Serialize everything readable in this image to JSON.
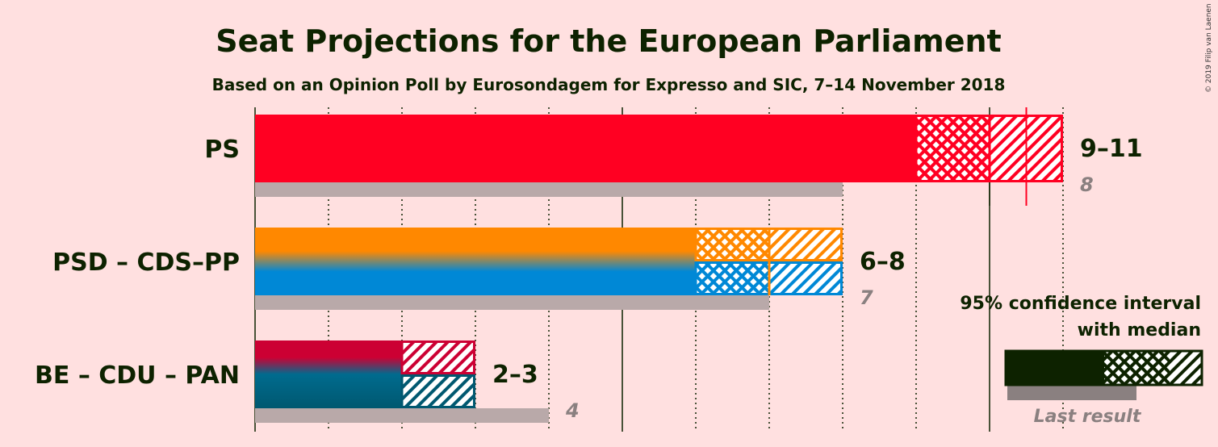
{
  "copyright": "© 2019 Filip van Laenen",
  "chart_data": {
    "type": "bar",
    "title": "Seat Projections for the European Parliament",
    "subtitle": "Based on an Opinion Poll by Eurosondagem for Expresso and SIC, 7–14 November 2018",
    "xlim": [
      0,
      11
    ],
    "orientation": "horizontal",
    "grid": true,
    "parties": [
      {
        "name": "PS",
        "range_label": "9–11",
        "last_label": "8",
        "ci_low": 9,
        "median": 10,
        "ci_high": 11,
        "last_result": 8,
        "majority_marker": 10.5,
        "colors": [
          "#ff0022"
        ]
      },
      {
        "name": "PSD – CDS–PP",
        "range_label": "6–8",
        "last_label": "7",
        "ci_low": 6,
        "median": 7,
        "ci_high": 8,
        "last_result": 7,
        "colors": [
          "#ff8800",
          "#0088d6"
        ]
      },
      {
        "name": "BE – CDU – PAN",
        "range_label": "2–3",
        "last_label": "4",
        "ci_low": 2,
        "median": 2,
        "ci_high": 3,
        "last_result": 4,
        "colors": [
          "#cc0033",
          "#006b8e",
          "#005870"
        ]
      }
    ],
    "legend": {
      "position": "bottom-right",
      "line1": "95% confidence interval",
      "line2": "with median",
      "last_result": "Last result"
    }
  }
}
